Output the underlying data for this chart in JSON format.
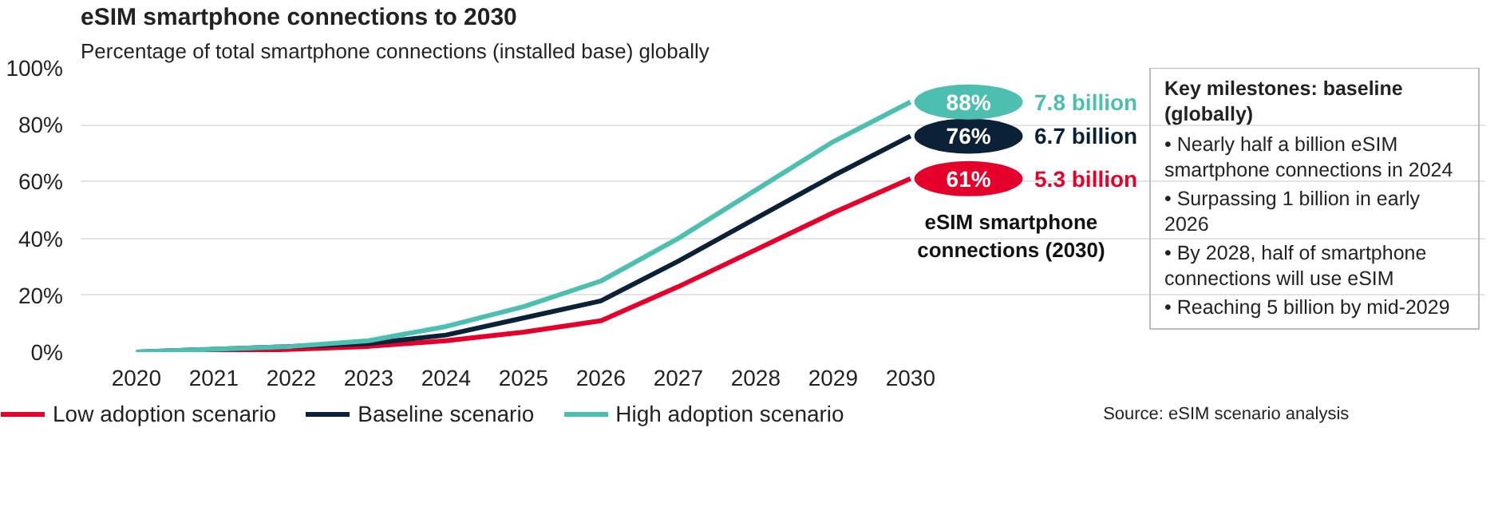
{
  "chart_data": {
    "type": "line",
    "title": "eSIM smartphone connections to 2030",
    "subtitle": "Percentage of total smartphone connections (installed base) globally",
    "categories": [
      "2020",
      "2021",
      "2022",
      "2023",
      "2024",
      "2025",
      "2026",
      "2027",
      "2028",
      "2029",
      "2030"
    ],
    "series": [
      {
        "name": "Low adoption scenario",
        "color": "#e4002b",
        "values": [
          0,
          0,
          1,
          2,
          4,
          7,
          11,
          23,
          36,
          49,
          61
        ],
        "value_labels": [
          null,
          null,
          null,
          null,
          null,
          null,
          null,
          null,
          null,
          null,
          "61%"
        ]
      },
      {
        "name": "Baseline scenario",
        "color": "#0b2138",
        "values": [
          0,
          1,
          2,
          3,
          6,
          12,
          18,
          32,
          47,
          62,
          76
        ],
        "value_labels": [
          null,
          null,
          null,
          null,
          null,
          null,
          null,
          null,
          null,
          null,
          "76%"
        ]
      },
      {
        "name": "High adoption scenario",
        "color": "#4dbfb0",
        "values": [
          0,
          1,
          2,
          4,
          9,
          16,
          25,
          40,
          57,
          74,
          88
        ],
        "value_labels": [
          null,
          null,
          null,
          null,
          null,
          null,
          null,
          null,
          null,
          null,
          "88%"
        ]
      }
    ],
    "ylim": [
      0,
      100
    ],
    "yticks": [
      {
        "value": 0,
        "label": "0%"
      },
      {
        "value": 20,
        "label": "20%"
      },
      {
        "value": 40,
        "label": "40%"
      },
      {
        "value": 60,
        "label": "60%"
      },
      {
        "value": 80,
        "label": "80%"
      },
      {
        "value": 100,
        "label": "100%"
      }
    ],
    "grid": "y",
    "legend": "bottom",
    "line_style": "solid",
    "marker": "none",
    "annotations": [
      {
        "text": "5.3 billion",
        "x": "2030",
        "y": 61
      },
      {
        "text": "6.7 billion",
        "x": "2030",
        "y": 76
      },
      {
        "text": "7.8 billion",
        "x": "2030",
        "y": 88
      },
      "eSIM smartphone connections (2030)",
      "Key milestones: baseline (globally)",
      "• Nearly half a billion eSIM smartphone connections in 2024",
      "• Surpassing 1 billion in early 2026",
      "• By 2028, half of smartphone connections will use eSIM",
      "• Reaching 5 billion by mid-2029",
      "Source: eSIM scenario analysis"
    ]
  }
}
